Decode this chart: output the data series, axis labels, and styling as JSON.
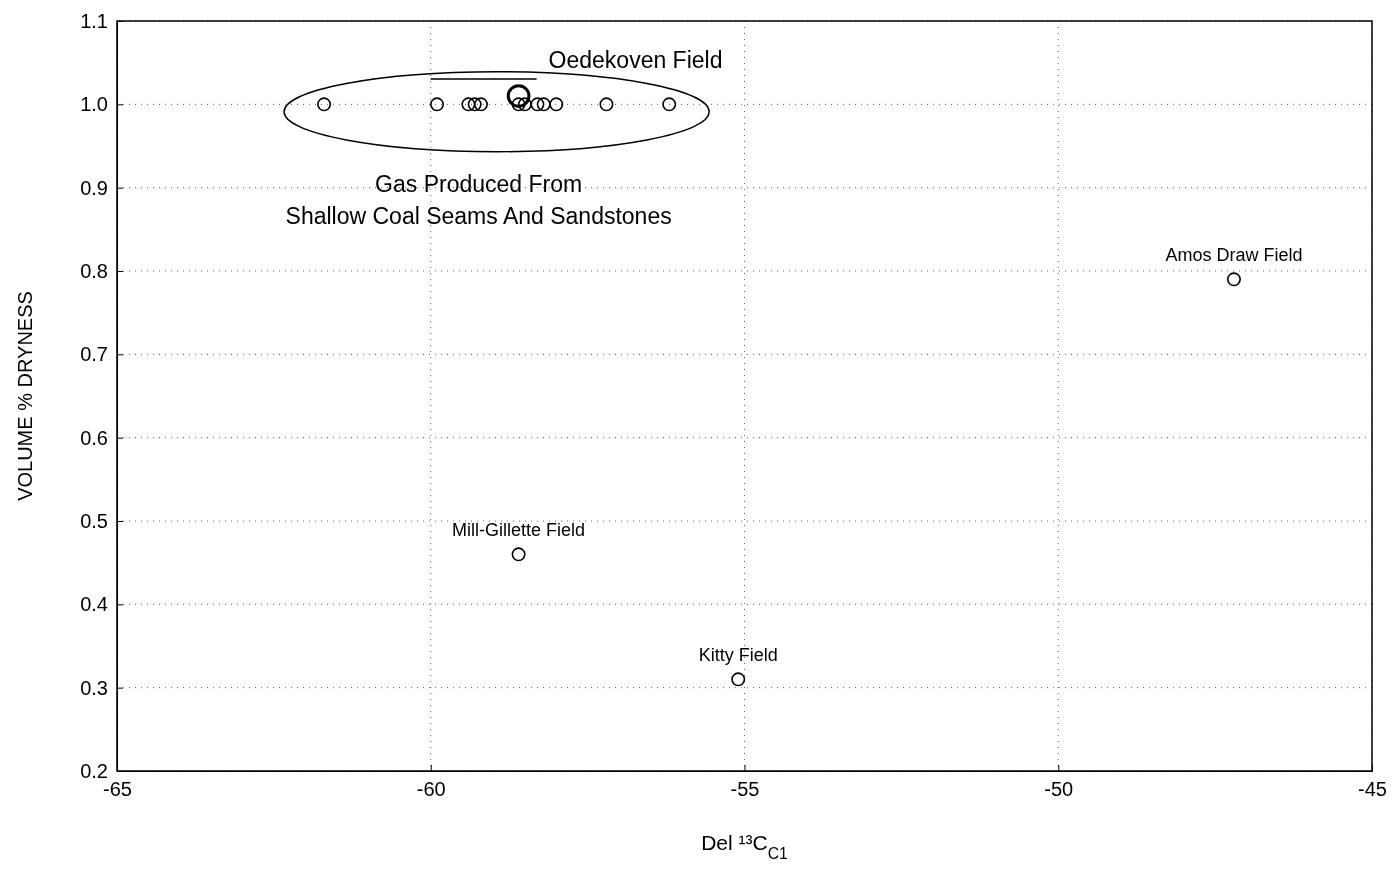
{
  "chart_data": {
    "type": "bubble",
    "xlabel": "Del ¹³C$_{C1}$",
    "ylabel": "VOLUME % DRYNESS",
    "x": [
      -61.7,
      -59.9,
      -59.4,
      -59.3,
      -59.2,
      -58.6,
      -58.5,
      -58.3,
      -58.2,
      -58.0,
      -57.2,
      -56.2,
      -58.6,
      -47.2,
      -58.6,
      -55.1
    ],
    "values": [
      1.0,
      1.0,
      1.0,
      1.0,
      1.0,
      1.0,
      1.0,
      1.0,
      1.0,
      1.0,
      1.0,
      1.0,
      1.01,
      0.79,
      0.46,
      0.31
    ],
    "sizes": [
      0.36,
      0.36,
      0.36,
      0.36,
      0.36,
      0.36,
      0.36,
      0.36,
      0.36,
      0.36,
      0.36,
      0.36,
      1,
      0.36,
      0.36,
      0.36
    ],
    "color": "#000000",
    "marker": "circle",
    "xlim": [
      -65,
      -45
    ],
    "xticks": [
      -65,
      -60,
      -55,
      -50,
      -45
    ],
    "ylim": [
      0.2,
      1.1
    ],
    "yticks": [
      {
        "value": 0.2,
        "label": "0.2"
      },
      {
        "value": 0.3,
        "label": "0.3"
      },
      {
        "value": 0.4,
        "label": "0.4"
      },
      {
        "value": 0.5,
        "label": "0.5"
      },
      {
        "value": 0.6,
        "label": "0.6"
      },
      {
        "value": 0.7,
        "label": "0.7"
      },
      {
        "value": 0.8,
        "label": "0.8"
      },
      {
        "value": 0.9,
        "label": "0.9"
      },
      {
        "value": 1.0,
        "label": "1.0"
      },
      {
        "value": 1.1,
        "label": "1.1"
      }
    ],
    "grid": true,
    "annotations": [
      {
        "text": "Oedekoven Field",
        "x": -58.6,
        "y": 1.01
      },
      "Gas Produced From\nShallow Coal Seams And Sandstones",
      {
        "text": "Amos Draw Field",
        "x": -47.2,
        "y": 0.79
      },
      {
        "text": "Mill-Gillette Field",
        "x": -58.6,
        "y": 0.46
      },
      {
        "text": "Kitty Field",
        "x": -55.1,
        "y": 0.31
      }
    ]
  }
}
